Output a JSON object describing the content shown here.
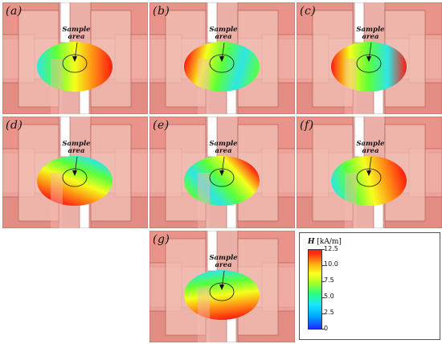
{
  "panels": [
    {
      "label": "(a)",
      "sample_label_1": "Sample",
      "sample_label_2": "area"
    },
    {
      "label": "(b)",
      "sample_label_1": "Sample",
      "sample_label_2": "area"
    },
    {
      "label": "(c)",
      "sample_label_1": "Sample",
      "sample_label_2": "area"
    },
    {
      "label": "(d)",
      "sample_label_1": "Sample",
      "sample_label_2": "area"
    },
    {
      "label": "(e)",
      "sample_label_1": "Sample",
      "sample_label_2": "area"
    },
    {
      "label": "(f)",
      "sample_label_1": "Sample",
      "sample_label_2": "area"
    },
    {
      "label": "(g)",
      "sample_label_1": "Sample",
      "sample_label_2": "area"
    }
  ],
  "colorbar": {
    "symbol": "H",
    "unit": "[kA/m]",
    "ticks": [
      "12.5",
      "10.0",
      "7.5",
      "5.0",
      "2.5",
      "0"
    ],
    "colors": [
      "#ff1a10",
      "#ffff1e",
      "#2bff7a",
      "#16e6ff",
      "#1a2cff"
    ]
  }
}
